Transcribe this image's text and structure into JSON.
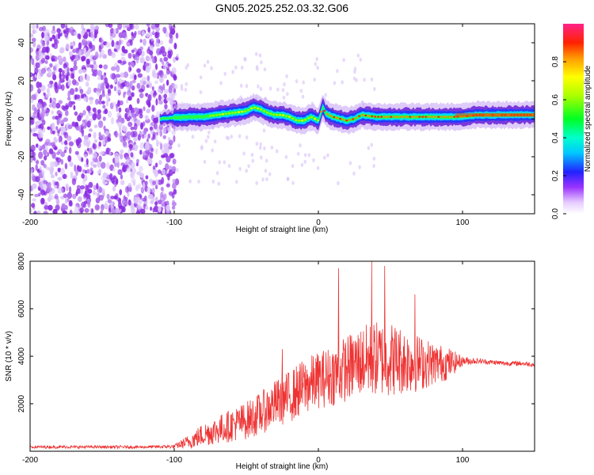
{
  "title": "GN05.2025.252.03.32.G06",
  "chart_data": [
    {
      "type": "heatmap",
      "name": "spectrogram",
      "xlabel": "Height of straight line (km)",
      "ylabel": "Frequency (Hz)",
      "xlim": [
        -200,
        150
      ],
      "ylim": [
        -50,
        50
      ],
      "xticks": [
        "-200",
        "-100",
        "0",
        "100"
      ],
      "xtick_values": [
        -200,
        -100,
        0,
        100
      ],
      "yticks": [
        "-40",
        "-20",
        "0",
        "20",
        "40"
      ],
      "ytick_values": [
        -40,
        -20,
        0,
        20,
        40
      ],
      "noise_region_x": [
        -200,
        -98
      ],
      "signal_region_x": [
        -110,
        150
      ],
      "ridge": {
        "description": "dominant frequency ridge (normalized amplitude ~0.9 near center)",
        "x": [
          -110,
          -100,
          -90,
          -80,
          -70,
          -60,
          -50,
          -45,
          -40,
          -35,
          -30,
          -25,
          -20,
          -15,
          -10,
          -5,
          0,
          3,
          5,
          10,
          15,
          20,
          25,
          30,
          40,
          50,
          60,
          70,
          80,
          90,
          100,
          110,
          120,
          130,
          140,
          150
        ],
        "y": [
          0,
          0.5,
          1,
          1,
          2,
          3,
          4,
          6,
          5,
          3,
          2,
          2,
          1,
          -1,
          -1,
          1,
          -1,
          6,
          3,
          1,
          0,
          -1,
          0,
          2,
          1,
          1,
          1,
          1,
          1,
          1,
          1,
          2,
          2,
          2,
          2,
          2
        ]
      }
    },
    {
      "type": "colorbar",
      "name": "amplitude-colorbar",
      "label": "Normalized spectral amplitude",
      "range": [
        0,
        1
      ],
      "ticks": [
        "0.0",
        "0.2",
        "0.4",
        "0.6",
        "0.8"
      ],
      "tick_values": [
        0,
        0.2,
        0.4,
        0.6,
        0.8
      ]
    },
    {
      "type": "line",
      "name": "snr",
      "xlabel": "Height of straight line (km)",
      "ylabel": "SNR (10 * v/v)",
      "xlim": [
        -200,
        150
      ],
      "ylim": [
        0,
        8000
      ],
      "xticks": [
        "-200",
        "-100",
        "0",
        "100"
      ],
      "xtick_values": [
        -200,
        -100,
        0,
        100
      ],
      "yticks": [
        "2000",
        "4000",
        "6000",
        "8000"
      ],
      "ytick_values": [
        2000,
        4000,
        6000,
        8000
      ],
      "series": [
        {
          "name": "SNR",
          "color": "#ee3333",
          "envelope_x": [
            -200,
            -160,
            -120,
            -100,
            -90,
            -80,
            -70,
            -60,
            -50,
            -40,
            -30,
            -20,
            -10,
            0,
            10,
            20,
            30,
            40,
            50,
            60,
            70,
            80,
            90,
            100,
            110,
            120,
            130,
            140,
            150
          ],
          "envelope_mean": [
            180,
            180,
            180,
            200,
            400,
            700,
            900,
            1100,
            1300,
            1600,
            2000,
            2300,
            2700,
            3000,
            3200,
            3500,
            3800,
            3900,
            3900,
            3800,
            3700,
            3700,
            3700,
            3800,
            3800,
            3750,
            3700,
            3700,
            3650
          ],
          "envelope_spread": [
            60,
            60,
            60,
            80,
            300,
            500,
            600,
            700,
            800,
            900,
            1000,
            1100,
            1200,
            1200,
            1300,
            1400,
            1500,
            1600,
            1600,
            1400,
            1200,
            900,
            700,
            200,
            120,
            100,
            100,
            100,
            100
          ],
          "peaks": [
            {
              "x": 14,
              "y": 7700
            },
            {
              "x": 37,
              "y": 8000
            },
            {
              "x": 46,
              "y": 7800
            },
            {
              "x": 67,
              "y": 6600
            },
            {
              "x": -25,
              "y": 4300
            }
          ]
        }
      ]
    }
  ]
}
